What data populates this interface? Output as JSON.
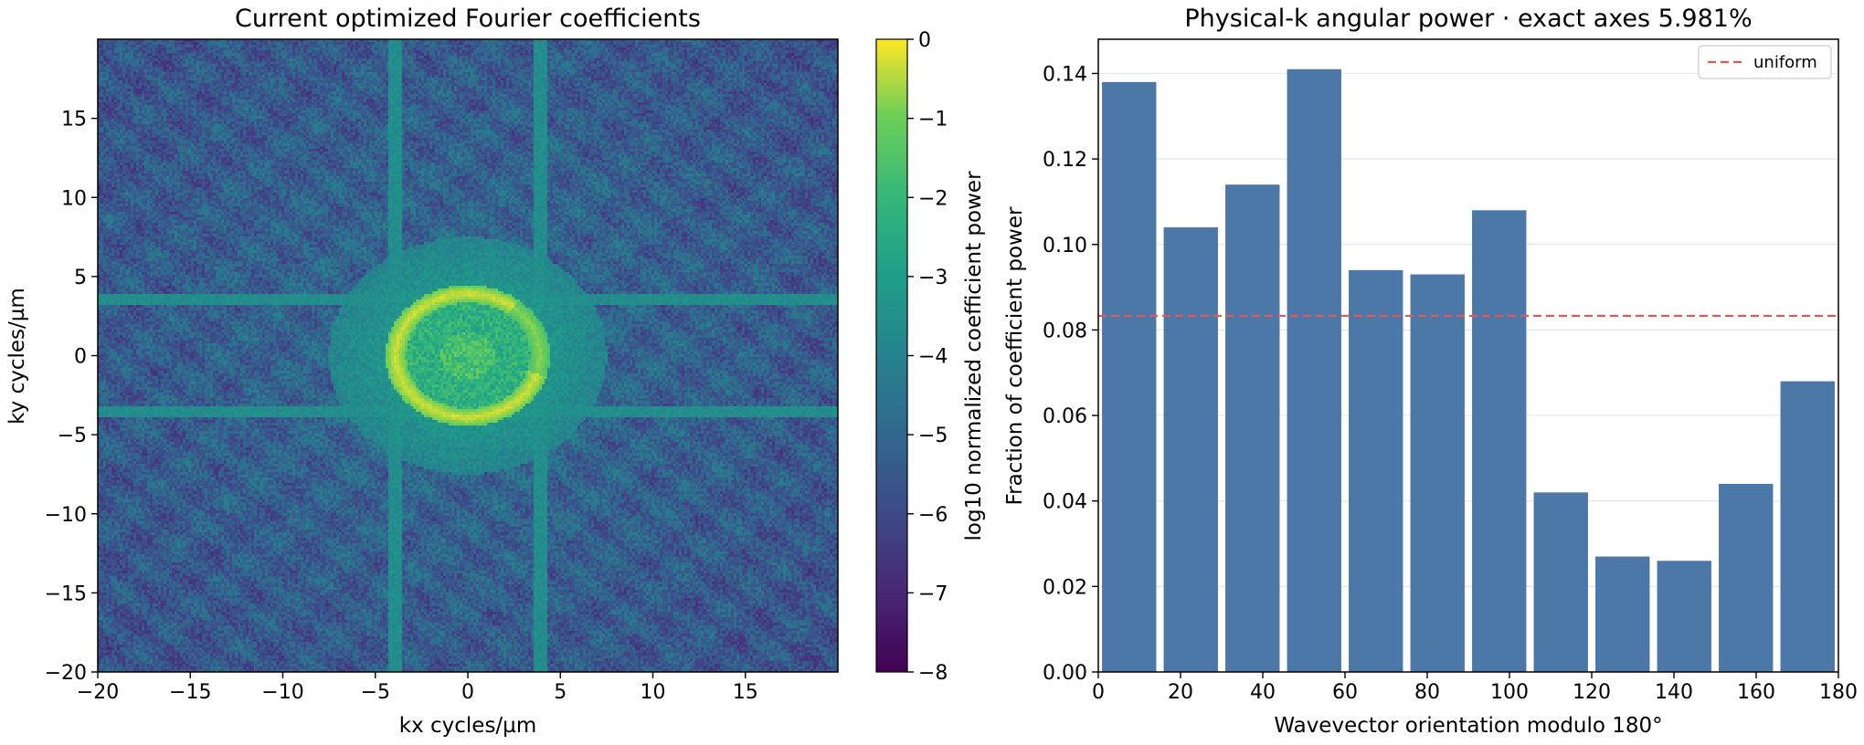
{
  "chart_data": [
    {
      "type": "heatmap",
      "title": "Current optimized Fourier coefficients",
      "xlabel": "kx cycles/µm",
      "ylabel": "ky cycles/µm",
      "xlim": [
        -20,
        20
      ],
      "ylim": [
        -20,
        20
      ],
      "xticks": [
        "−20",
        "−15",
        "−10",
        "−5",
        "0",
        "5",
        "10",
        "15"
      ],
      "yticks": [
        "−20",
        "−15",
        "−10",
        "−5",
        "0",
        "5",
        "10",
        "15"
      ],
      "colormap": "viridis",
      "colorbar": {
        "label": "log10 normalized coefficient power",
        "range": [
          -8,
          0
        ],
        "ticks": [
          "0",
          "−1",
          "−2",
          "−3",
          "−4",
          "−5",
          "−6",
          "−7",
          "−8"
        ]
      },
      "features": {
        "ring_radius": 3.9,
        "ring_value": -0.3,
        "axis_lines_kx": [
          -3.9,
          3.9
        ],
        "axis_lines_ky": [
          -3.6,
          3.6
        ],
        "background_value": -5.0
      }
    },
    {
      "type": "bar",
      "title": "Physical-k angular power · exact axes 5.981%",
      "xlabel": "Wavevector orientation modulo 180°",
      "ylabel": "Fraction of coefficient power",
      "categories": [
        7.5,
        22.5,
        37.5,
        52.5,
        67.5,
        82.5,
        97.5,
        112.5,
        127.5,
        142.5,
        157.5,
        172.5
      ],
      "values": [
        0.138,
        0.104,
        0.114,
        0.141,
        0.094,
        0.093,
        0.108,
        0.042,
        0.027,
        0.026,
        0.044,
        0.068
      ],
      "xlim": [
        0,
        180
      ],
      "ylim": [
        0,
        0.148
      ],
      "xticks": [
        "0",
        "20",
        "40",
        "60",
        "80",
        "100",
        "120",
        "140",
        "160",
        "180"
      ],
      "yticks": [
        "0.00",
        "0.02",
        "0.04",
        "0.06",
        "0.08",
        "0.10",
        "0.12",
        "0.14"
      ],
      "grid": "horizontal",
      "bar_color": "#4c78a8",
      "reference_line": {
        "label": "uniform",
        "value": 0.0833,
        "color": "#e45756",
        "style": "dashed"
      },
      "legend": "top-right"
    }
  ]
}
